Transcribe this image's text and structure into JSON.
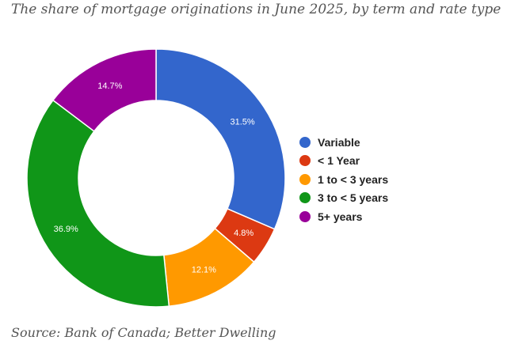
{
  "title": "The share of mortgage originations in June 2025, by term and rate type",
  "source": "Source: Bank of Canada; Better Dwelling",
  "chart_data": {
    "type": "pie",
    "donut": true,
    "categories": [
      "Variable",
      "< 1 Year",
      "1 to < 3 years",
      "3 to < 5 years",
      "5+ years"
    ],
    "values": [
      31.5,
      4.8,
      12.1,
      36.9,
      14.7
    ],
    "labels": [
      "31.5%",
      "4.8%",
      "12.1%",
      "36.9%",
      "14.7%"
    ],
    "colors": [
      "#3366cc",
      "#dc3912",
      "#ff9900",
      "#109618",
      "#990099"
    ],
    "legend": "right"
  }
}
